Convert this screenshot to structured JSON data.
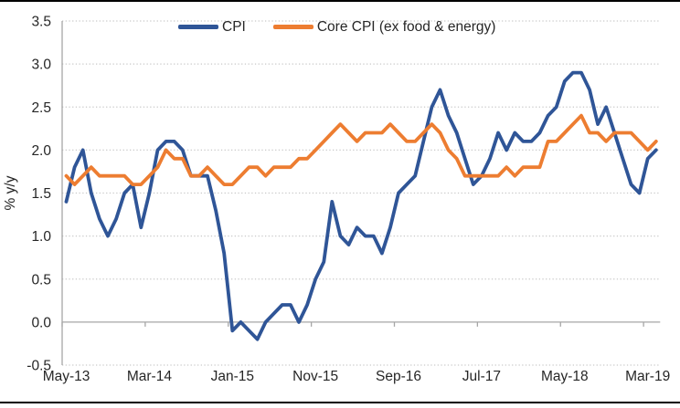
{
  "page": {
    "background": "#ffffff",
    "top_rule_color": "#000000",
    "bottom_rule_color": "#000000"
  },
  "chart_data": {
    "type": "line",
    "title": "",
    "xlabel": "",
    "ylabel": "% y/y",
    "ylim": [
      -0.5,
      3.5
    ],
    "y_tick_step": 0.5,
    "y_tick_labels": [
      "3.5",
      "3.0",
      "2.5",
      "2.0",
      "1.5",
      "1.0",
      "0.5",
      "0.0",
      "-0.5"
    ],
    "x_tick_labels": [
      "May-13",
      "Mar-14",
      "Jan-15",
      "Nov-15",
      "Sep-16",
      "Jul-17",
      "May-18",
      "Mar-19"
    ],
    "x_label_interval": 10,
    "grid": "horizontal-dotted",
    "gridline_color": "#C9C9C9",
    "axis_color": "#A6A6A6",
    "text_color": "#262626",
    "legend_position": "top",
    "categories": [
      "May-13",
      "Jun-13",
      "Jul-13",
      "Aug-13",
      "Sep-13",
      "Oct-13",
      "Nov-13",
      "Dec-13",
      "Jan-14",
      "Feb-14",
      "Mar-14",
      "Apr-14",
      "May-14",
      "Jun-14",
      "Jul-14",
      "Aug-14",
      "Sep-14",
      "Oct-14",
      "Nov-14",
      "Dec-14",
      "Jan-15",
      "Feb-15",
      "Mar-15",
      "Apr-15",
      "May-15",
      "Jun-15",
      "Jul-15",
      "Aug-15",
      "Sep-15",
      "Oct-15",
      "Nov-15",
      "Dec-15",
      "Jan-16",
      "Feb-16",
      "Mar-16",
      "Apr-16",
      "May-16",
      "Jun-16",
      "Jul-16",
      "Aug-16",
      "Sep-16",
      "Oct-16",
      "Nov-16",
      "Dec-16",
      "Jan-17",
      "Feb-17",
      "Mar-17",
      "Apr-17",
      "May-17",
      "Jun-17",
      "Jul-17",
      "Aug-17",
      "Sep-17",
      "Oct-17",
      "Nov-17",
      "Dec-17",
      "Jan-18",
      "Feb-18",
      "Mar-18",
      "Apr-18",
      "May-18",
      "Jun-18",
      "Jul-18",
      "Aug-18",
      "Sep-18",
      "Oct-18",
      "Nov-18",
      "Dec-18",
      "Jan-19",
      "Feb-19",
      "Mar-19",
      "Apr-19"
    ],
    "series": [
      {
        "name": "CPI",
        "color": "#2F5597",
        "values": [
          1.4,
          1.8,
          2.0,
          1.5,
          1.2,
          1.0,
          1.2,
          1.5,
          1.6,
          1.1,
          1.5,
          2.0,
          2.1,
          2.1,
          2.0,
          1.7,
          1.7,
          1.7,
          1.3,
          0.8,
          -0.1,
          0.0,
          -0.1,
          -0.2,
          0.0,
          0.1,
          0.2,
          0.2,
          0.0,
          0.2,
          0.5,
          0.7,
          1.4,
          1.0,
          0.9,
          1.1,
          1.0,
          1.0,
          0.8,
          1.1,
          1.5,
          1.6,
          1.7,
          2.1,
          2.5,
          2.7,
          2.4,
          2.2,
          1.9,
          1.6,
          1.7,
          1.9,
          2.2,
          2.0,
          2.2,
          2.1,
          2.1,
          2.2,
          2.4,
          2.5,
          2.8,
          2.9,
          2.9,
          2.7,
          2.3,
          2.5,
          2.2,
          1.9,
          1.6,
          1.5,
          1.9,
          2.0
        ]
      },
      {
        "name": "Core CPI (ex food & energy)",
        "color": "#ED7D31",
        "values": [
          1.7,
          1.6,
          1.7,
          1.8,
          1.7,
          1.7,
          1.7,
          1.7,
          1.6,
          1.6,
          1.7,
          1.8,
          2.0,
          1.9,
          1.9,
          1.7,
          1.7,
          1.8,
          1.7,
          1.6,
          1.6,
          1.7,
          1.8,
          1.8,
          1.7,
          1.8,
          1.8,
          1.8,
          1.9,
          1.9,
          2.0,
          2.1,
          2.2,
          2.3,
          2.2,
          2.1,
          2.2,
          2.2,
          2.2,
          2.3,
          2.2,
          2.1,
          2.1,
          2.2,
          2.3,
          2.2,
          2.0,
          1.9,
          1.7,
          1.7,
          1.7,
          1.7,
          1.7,
          1.8,
          1.7,
          1.8,
          1.8,
          1.8,
          2.1,
          2.1,
          2.2,
          2.3,
          2.4,
          2.2,
          2.2,
          2.1,
          2.2,
          2.2,
          2.2,
          2.1,
          2.0,
          2.1
        ]
      }
    ]
  }
}
